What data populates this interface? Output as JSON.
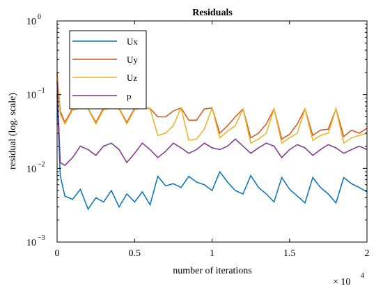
{
  "chart_data": {
    "type": "line",
    "title": "Residuals",
    "xlabel": "number of iterations",
    "ylabel": "residual (log. scale)",
    "x_exponent_label": "× 10",
    "x_exponent": "4",
    "xlim": [
      0,
      2
    ],
    "ylim": [
      0.001,
      1
    ],
    "yscale": "log",
    "x_ticks": [
      "0",
      "0.5",
      "1",
      "1.5",
      "2"
    ],
    "y_ticks": [
      {
        "base": "10",
        "exp": "0"
      },
      {
        "base": "10",
        "exp": "−1"
      },
      {
        "base": "10",
        "exp": "−2"
      },
      {
        "base": "10",
        "exp": "−3"
      }
    ],
    "grid": false,
    "legend_position": "top-left",
    "series": [
      {
        "name": "Ux",
        "color": "#0072bd",
        "x": [
          0.0,
          0.02,
          0.05,
          0.1,
          0.15,
          0.2,
          0.25,
          0.3,
          0.35,
          0.4,
          0.45,
          0.5,
          0.55,
          0.6,
          0.65,
          0.7,
          0.75,
          0.8,
          0.85,
          0.9,
          0.95,
          1.0,
          1.05,
          1.1,
          1.15,
          1.2,
          1.25,
          1.3,
          1.35,
          1.4,
          1.45,
          1.5,
          1.55,
          1.6,
          1.65,
          1.7,
          1.75,
          1.8,
          1.85,
          1.9,
          1.95,
          2.0
        ],
        "y": [
          0.1,
          0.008,
          0.0042,
          0.0038,
          0.0052,
          0.0028,
          0.004,
          0.0035,
          0.005,
          0.003,
          0.0045,
          0.0035,
          0.0048,
          0.0032,
          0.0078,
          0.0058,
          0.0062,
          0.0055,
          0.0078,
          0.0065,
          0.006,
          0.005,
          0.009,
          0.0065,
          0.005,
          0.0045,
          0.008,
          0.0055,
          0.0045,
          0.0035,
          0.0075,
          0.0052,
          0.0042,
          0.0034,
          0.0075,
          0.0055,
          0.0045,
          0.0034,
          0.0075,
          0.0062,
          0.0055,
          0.0048
        ]
      },
      {
        "name": "Uy",
        "color": "#d95319",
        "x": [
          0.0,
          0.02,
          0.05,
          0.1,
          0.15,
          0.2,
          0.25,
          0.3,
          0.35,
          0.4,
          0.45,
          0.5,
          0.55,
          0.6,
          0.65,
          0.7,
          0.75,
          0.8,
          0.85,
          0.9,
          0.95,
          1.0,
          1.05,
          1.1,
          1.15,
          1.2,
          1.25,
          1.3,
          1.35,
          1.4,
          1.45,
          1.5,
          1.55,
          1.6,
          1.65,
          1.7,
          1.75,
          1.8,
          1.85,
          1.9,
          1.95,
          2.0
        ],
        "y": [
          0.2,
          0.06,
          0.042,
          0.065,
          0.066,
          0.065,
          0.042,
          0.066,
          0.066,
          0.065,
          0.042,
          0.065,
          0.066,
          0.065,
          0.05,
          0.05,
          0.06,
          0.066,
          0.045,
          0.045,
          0.064,
          0.066,
          0.03,
          0.038,
          0.05,
          0.064,
          0.026,
          0.03,
          0.04,
          0.064,
          0.025,
          0.029,
          0.04,
          0.064,
          0.028,
          0.033,
          0.034,
          0.064,
          0.027,
          0.033,
          0.03,
          0.035
        ]
      },
      {
        "name": "Uz",
        "color": "#edb120",
        "x": [
          0.0,
          0.02,
          0.05,
          0.1,
          0.15,
          0.2,
          0.25,
          0.3,
          0.35,
          0.4,
          0.45,
          0.5,
          0.55,
          0.6,
          0.65,
          0.7,
          0.75,
          0.8,
          0.85,
          0.9,
          0.95,
          1.0,
          1.05,
          1.1,
          1.15,
          1.2,
          1.25,
          1.3,
          1.35,
          1.4,
          1.45,
          1.5,
          1.55,
          1.6,
          1.65,
          1.7,
          1.75,
          1.8,
          1.85,
          1.9,
          1.95,
          2.0
        ],
        "y": [
          0.18,
          0.055,
          0.04,
          0.062,
          0.065,
          0.064,
          0.04,
          0.063,
          0.065,
          0.064,
          0.04,
          0.063,
          0.066,
          0.064,
          0.028,
          0.03,
          0.038,
          0.066,
          0.024,
          0.025,
          0.034,
          0.066,
          0.026,
          0.032,
          0.038,
          0.064,
          0.022,
          0.025,
          0.03,
          0.064,
          0.022,
          0.026,
          0.03,
          0.064,
          0.024,
          0.028,
          0.03,
          0.064,
          0.022,
          0.026,
          0.028,
          0.03
        ]
      },
      {
        "name": "p",
        "color": "#7e2f8e",
        "x": [
          0.0,
          0.02,
          0.05,
          0.1,
          0.15,
          0.2,
          0.25,
          0.3,
          0.35,
          0.4,
          0.45,
          0.5,
          0.55,
          0.6,
          0.65,
          0.7,
          0.75,
          0.8,
          0.85,
          0.9,
          0.95,
          1.0,
          1.05,
          1.1,
          1.15,
          1.2,
          1.25,
          1.3,
          1.35,
          1.4,
          1.45,
          1.5,
          1.55,
          1.6,
          1.65,
          1.7,
          1.75,
          1.8,
          1.85,
          1.9,
          1.95,
          2.0
        ],
        "y": [
          0.15,
          0.012,
          0.011,
          0.014,
          0.02,
          0.018,
          0.015,
          0.02,
          0.022,
          0.018,
          0.012,
          0.016,
          0.022,
          0.018,
          0.014,
          0.017,
          0.022,
          0.019,
          0.016,
          0.018,
          0.022,
          0.019,
          0.018,
          0.02,
          0.025,
          0.02,
          0.016,
          0.019,
          0.022,
          0.02,
          0.014,
          0.018,
          0.021,
          0.019,
          0.015,
          0.018,
          0.021,
          0.019,
          0.016,
          0.018,
          0.02,
          0.018
        ]
      }
    ]
  }
}
